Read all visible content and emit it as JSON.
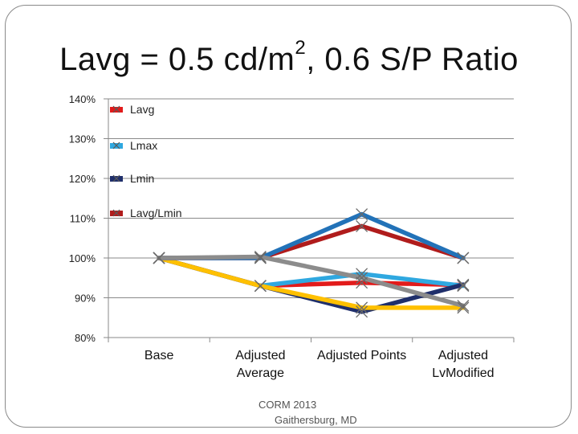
{
  "slide": {
    "title_main": "Lavg = 0.5 cd/m",
    "title_sup": "2",
    "title_rest": ", 0.6 S/P Ratio",
    "footer_line1": "CORM 2013",
    "footer_line2": "Gaithersburg, MD"
  },
  "chart_data": {
    "type": "line",
    "title": "Lavg = 0.5 cd/m2, 0.6 S/P Ratio",
    "categories": [
      "Base",
      "Adjusted\nAverage",
      "Adjusted Points",
      "Adjusted\nLvModified"
    ],
    "category_lines": [
      [
        "Base"
      ],
      [
        "Adjusted",
        "Average"
      ],
      [
        "Adjusted Points"
      ],
      [
        "Adjusted",
        "LvModified"
      ]
    ],
    "ylim": [
      80,
      140
    ],
    "ytick_step": 10,
    "ytick_labels": [
      "80%",
      "90%",
      "100%",
      "110%",
      "120%",
      "130%",
      "140%"
    ],
    "grid": true,
    "legend_position": "top-left",
    "series": [
      {
        "name": "Lavg",
        "color": "#e21b1b",
        "values": [
          100,
          93,
          93.8,
          93.2
        ]
      },
      {
        "name": "Lmax",
        "color": "#2fa8e0",
        "values": [
          100,
          93,
          96,
          93
        ]
      },
      {
        "name": "Lmin",
        "color": "#1f2f6b",
        "values": [
          100,
          93,
          86.5,
          93.3
        ]
      },
      {
        "name": "Lavg/Lmin",
        "color": "#b01c1c",
        "values": [
          100,
          100,
          108,
          100
        ]
      }
    ],
    "extra_series": [
      {
        "color": "#2272b8",
        "values": [
          100,
          100,
          111,
          100
        ]
      },
      {
        "color": "#ffc000",
        "values": [
          100,
          93,
          87.5,
          87.5
        ]
      },
      {
        "color": "#8c8c8c",
        "values": [
          100,
          100.3,
          95,
          88
        ]
      }
    ]
  }
}
